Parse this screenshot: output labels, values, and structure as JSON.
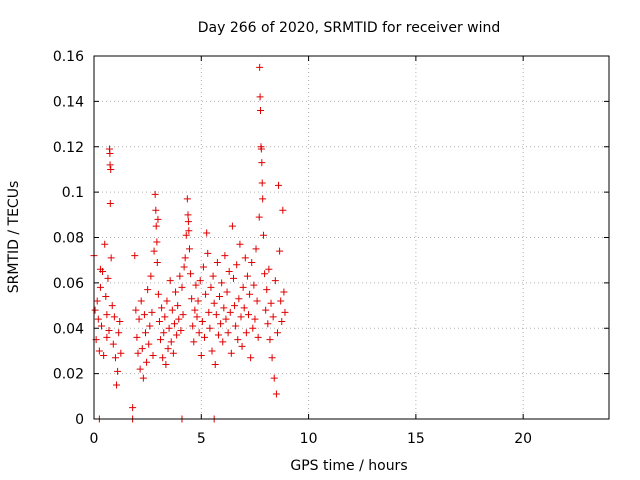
{
  "chart_data": {
    "type": "scatter",
    "title": "Day 266 of 2020, SRMTID for receiver wind",
    "xlabel": "GPS time / hours",
    "ylabel": "SRMTID / TECUs",
    "xlim": [
      0,
      24
    ],
    "ylim": [
      0,
      0.16
    ],
    "xticks": [
      0,
      5,
      10,
      15,
      20
    ],
    "xtick_labels": [
      "0",
      "5",
      "10",
      "15",
      "20"
    ],
    "yticks": [
      0,
      0.02,
      0.04,
      0.06,
      0.08,
      0.1,
      0.12,
      0.14,
      0.16
    ],
    "ytick_labels": [
      "0",
      "0.02",
      "0.04",
      "0.06",
      "0.08",
      "0.1",
      "0.12",
      "0.14",
      "0.16"
    ],
    "grid": true,
    "marker": "plus",
    "color": "#e00000",
    "series": [
      {
        "name": "SRMTID",
        "points": [
          [
            0.0,
            0.072
          ],
          [
            0.05,
            0.048
          ],
          [
            0.1,
            0.035
          ],
          [
            0.15,
            0.052
          ],
          [
            0.2,
            0.044
          ],
          [
            0.25,
            0.03
          ],
          [
            0.3,
            0.058
          ],
          [
            0.35,
            0.041
          ],
          [
            0.4,
            0.065
          ],
          [
            0.45,
            0.028
          ],
          [
            0.5,
            0.077
          ],
          [
            0.55,
            0.054
          ],
          [
            0.6,
            0.046
          ],
          [
            0.65,
            0.062
          ],
          [
            0.7,
            0.039
          ],
          [
            0.72,
            0.119
          ],
          [
            0.74,
            0.117
          ],
          [
            0.75,
            0.112
          ],
          [
            0.76,
            0.095
          ],
          [
            0.78,
            0.11
          ],
          [
            0.8,
            0.071
          ],
          [
            0.85,
            0.05
          ],
          [
            0.9,
            0.033
          ],
          [
            0.95,
            0.045
          ],
          [
            1.0,
            0.027
          ],
          [
            1.05,
            0.015
          ],
          [
            1.1,
            0.021
          ],
          [
            1.15,
            0.038
          ],
          [
            1.2,
            0.043
          ],
          [
            1.25,
            0.029
          ],
          [
            0.3,
            0.066
          ],
          [
            0.6,
            0.036
          ],
          [
            1.8,
            0.005
          ],
          [
            1.9,
            0.072
          ],
          [
            1.95,
            0.048
          ],
          [
            2.0,
            0.036
          ],
          [
            2.05,
            0.029
          ],
          [
            2.1,
            0.044
          ],
          [
            2.15,
            0.022
          ],
          [
            2.2,
            0.052
          ],
          [
            2.25,
            0.031
          ],
          [
            2.3,
            0.018
          ],
          [
            2.35,
            0.046
          ],
          [
            2.4,
            0.038
          ],
          [
            2.45,
            0.025
          ],
          [
            2.5,
            0.057
          ],
          [
            2.55,
            0.033
          ],
          [
            2.6,
            0.041
          ],
          [
            2.65,
            0.063
          ],
          [
            2.7,
            0.047
          ],
          [
            2.75,
            0.028
          ],
          [
            2.8,
            0.074
          ],
          [
            2.85,
            0.099
          ],
          [
            2.88,
            0.092
          ],
          [
            2.9,
            0.085
          ],
          [
            2.93,
            0.078
          ],
          [
            2.95,
            0.069
          ],
          [
            2.98,
            0.088
          ],
          [
            3.0,
            0.055
          ],
          [
            3.05,
            0.043
          ],
          [
            3.1,
            0.035
          ],
          [
            3.15,
            0.049
          ],
          [
            3.2,
            0.027
          ],
          [
            3.25,
            0.038
          ],
          [
            3.3,
            0.045
          ],
          [
            3.35,
            0.024
          ],
          [
            3.4,
            0.052
          ],
          [
            3.45,
            0.031
          ],
          [
            3.5,
            0.04
          ],
          [
            3.55,
            0.061
          ],
          [
            3.6,
            0.034
          ],
          [
            3.65,
            0.048
          ],
          [
            3.7,
            0.029
          ],
          [
            3.75,
            0.042
          ],
          [
            3.8,
            0.056
          ],
          [
            3.85,
            0.037
          ],
          [
            3.9,
            0.05
          ],
          [
            3.95,
            0.044
          ],
          [
            4.0,
            0.063
          ],
          [
            4.05,
            0.039
          ],
          [
            4.1,
            0.058
          ],
          [
            4.15,
            0.046
          ],
          [
            4.2,
            0.067
          ],
          [
            4.25,
            0.071
          ],
          [
            4.3,
            0.081
          ],
          [
            4.35,
            0.097
          ],
          [
            4.38,
            0.09
          ],
          [
            4.4,
            0.087
          ],
          [
            4.42,
            0.083
          ],
          [
            4.45,
            0.075
          ],
          [
            4.5,
            0.064
          ],
          [
            4.55,
            0.053
          ],
          [
            4.6,
            0.041
          ],
          [
            4.65,
            0.034
          ],
          [
            4.7,
            0.048
          ],
          [
            4.75,
            0.059
          ],
          [
            4.8,
            0.045
          ],
          [
            4.85,
            0.052
          ],
          [
            4.9,
            0.038
          ],
          [
            4.95,
            0.061
          ],
          [
            5.0,
            0.028
          ],
          [
            5.05,
            0.043
          ],
          [
            5.1,
            0.067
          ],
          [
            5.15,
            0.036
          ],
          [
            5.2,
            0.055
          ],
          [
            5.25,
            0.082
          ],
          [
            5.3,
            0.073
          ],
          [
            5.35,
            0.047
          ],
          [
            5.4,
            0.04
          ],
          [
            5.45,
            0.058
          ],
          [
            5.5,
            0.03
          ],
          [
            5.55,
            0.063
          ],
          [
            5.6,
            0.051
          ],
          [
            5.65,
            0.024
          ],
          [
            5.7,
            0.046
          ],
          [
            5.75,
            0.069
          ],
          [
            5.8,
            0.037
          ],
          [
            5.85,
            0.054
          ],
          [
            5.9,
            0.042
          ],
          [
            5.95,
            0.06
          ],
          [
            6.0,
            0.034
          ],
          [
            6.05,
            0.049
          ],
          [
            6.1,
            0.072
          ],
          [
            6.15,
            0.044
          ],
          [
            6.2,
            0.056
          ],
          [
            6.25,
            0.038
          ],
          [
            6.3,
            0.065
          ],
          [
            6.35,
            0.047
          ],
          [
            6.4,
            0.029
          ],
          [
            6.45,
            0.085
          ],
          [
            6.5,
            0.062
          ],
          [
            6.55,
            0.05
          ],
          [
            6.6,
            0.041
          ],
          [
            6.65,
            0.068
          ],
          [
            6.7,
            0.035
          ],
          [
            6.75,
            0.053
          ],
          [
            6.8,
            0.077
          ],
          [
            6.85,
            0.045
          ],
          [
            6.9,
            0.032
          ],
          [
            6.95,
            0.058
          ],
          [
            7.0,
            0.049
          ],
          [
            7.05,
            0.071
          ],
          [
            7.1,
            0.038
          ],
          [
            7.15,
            0.063
          ],
          [
            7.2,
            0.046
          ],
          [
            7.25,
            0.055
          ],
          [
            7.3,
            0.027
          ],
          [
            7.35,
            0.069
          ],
          [
            7.4,
            0.04
          ],
          [
            7.45,
            0.059
          ],
          [
            7.5,
            0.044
          ],
          [
            7.55,
            0.075
          ],
          [
            7.6,
            0.052
          ],
          [
            7.65,
            0.036
          ],
          [
            7.7,
            0.089
          ],
          [
            7.72,
            0.155
          ],
          [
            7.74,
            0.142
          ],
          [
            7.76,
            0.136
          ],
          [
            7.78,
            0.12
          ],
          [
            7.8,
            0.119
          ],
          [
            7.82,
            0.113
          ],
          [
            7.84,
            0.104
          ],
          [
            7.86,
            0.097
          ],
          [
            7.9,
            0.081
          ],
          [
            7.95,
            0.064
          ],
          [
            8.0,
            0.048
          ],
          [
            8.05,
            0.057
          ],
          [
            8.1,
            0.042
          ],
          [
            8.15,
            0.066
          ],
          [
            8.2,
            0.035
          ],
          [
            8.25,
            0.051
          ],
          [
            8.3,
            0.027
          ],
          [
            8.35,
            0.045
          ],
          [
            8.4,
            0.018
          ],
          [
            8.45,
            0.061
          ],
          [
            8.5,
            0.011
          ],
          [
            8.55,
            0.038
          ],
          [
            8.6,
            0.103
          ],
          [
            8.65,
            0.074
          ],
          [
            8.7,
            0.052
          ],
          [
            8.75,
            0.043
          ],
          [
            8.8,
            0.092
          ],
          [
            8.85,
            0.056
          ],
          [
            8.9,
            0.047
          ],
          [
            0.25,
            0.0
          ],
          [
            1.8,
            0.0
          ],
          [
            4.1,
            0.0
          ],
          [
            5.6,
            0.0
          ]
        ]
      }
    ]
  }
}
